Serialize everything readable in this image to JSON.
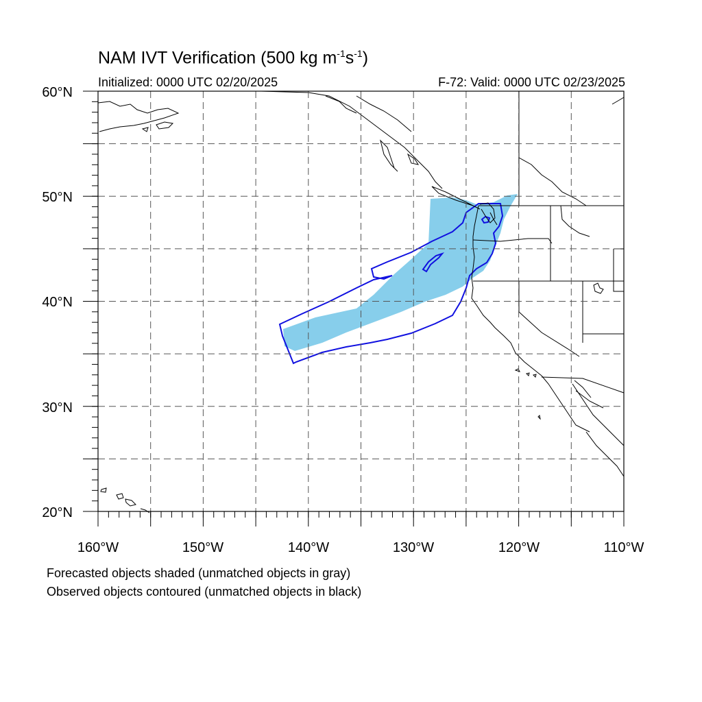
{
  "title": {
    "main": "NAM IVT Verification (500 kg m",
    "exp1": "-1",
    "mid": "s",
    "exp2": "-1",
    "close": ")"
  },
  "subtitle_left": "Initialized: 0000 UTC 02/20/2025",
  "subtitle_right": "F-72: Valid: 0000 UTC 02/23/2025",
  "lat_labels": [
    "60°N",
    "50°N",
    "40°N",
    "30°N",
    "20°N"
  ],
  "lon_labels": [
    "160°W",
    "150°W",
    "140°W",
    "130°W",
    "120°W",
    "110°W"
  ],
  "notes": [
    "Forecasted objects shaded (unmatched objects in gray)",
    "Observed objects contoured (unmatched objects in black)"
  ],
  "colors": {
    "forecast_fill": "#87CEEB",
    "observed_contour": "#1010E0",
    "coastline": "#000000",
    "grid": "#555555"
  }
}
